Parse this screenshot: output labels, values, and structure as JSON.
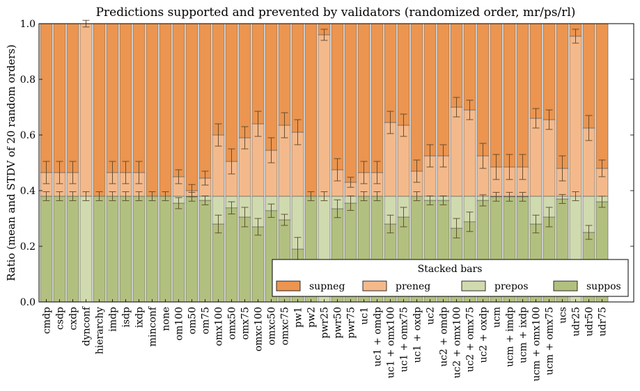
{
  "chart_data": {
    "type": "bar",
    "stacked": true,
    "title": "Predictions supported and prevented by validators (randomized order, mr/ps/rl)",
    "xlabel": "",
    "ylabel": "Ratio (mean and STDV of 20 random orders)",
    "ylim": [
      0,
      1.0
    ],
    "yticks": [
      "0.0",
      "0.2",
      "0.4",
      "0.6",
      "0.8",
      "1.0"
    ],
    "grid": false,
    "legend": {
      "title": "Stacked bars",
      "placement": "lower-right"
    },
    "categories": [
      "cmdp",
      "csdp",
      "cxdp",
      "dynconf",
      "hierarchy",
      "imdp",
      "isdp",
      "ixdp",
      "minconf",
      "none",
      "om100",
      "om50",
      "om75",
      "omx100",
      "omx50",
      "omx75",
      "omxc100",
      "omxc50",
      "omxc75",
      "pw1",
      "pw2",
      "pwr25",
      "pwr50",
      "pwr75",
      "uc1",
      "uc1 + omdp",
      "uc1 + omx100",
      "uc1 + omx75",
      "uc1 + oxdp",
      "uc2",
      "uc2 + omdp",
      "uc2 + omx100",
      "uc2 + omx75",
      "uc2 + oxdp",
      "ucm",
      "ucm + imdp",
      "ucm + ixdp",
      "ucm + omx100",
      "ucm + omx75",
      "ucs",
      "udr25",
      "udr50",
      "udr75"
    ],
    "series": [
      {
        "name": "suppos",
        "color": "#b2c07f",
        "values": [
          0.38,
          0.38,
          0.38,
          0,
          0.38,
          0.38,
          0.38,
          0.38,
          0.38,
          0.38,
          0.355,
          0.378,
          0.365,
          0.28,
          0.338,
          0.305,
          0.27,
          0.328,
          0.295,
          0.19,
          0.38,
          0,
          0.335,
          0.355,
          0.38,
          0.38,
          0.28,
          0.305,
          0.38,
          0.365,
          0.365,
          0.265,
          0.288,
          0.365,
          0.378,
          0.378,
          0.378,
          0.28,
          0.305,
          0.37,
          0,
          0.25,
          0.36
        ],
        "errors": [
          0.016,
          0.016,
          0.016,
          0,
          0.016,
          0.016,
          0.016,
          0.016,
          0.016,
          0.016,
          0.02,
          0.016,
          0.016,
          0.032,
          0.022,
          0.035,
          0.03,
          0.024,
          0.02,
          0.042,
          0.016,
          0,
          0.032,
          0.026,
          0.016,
          0.016,
          0.032,
          0.035,
          0.016,
          0.016,
          0.016,
          0.035,
          0.035,
          0.02,
          0.016,
          0.016,
          0.016,
          0.032,
          0.035,
          0.016,
          0,
          0.025,
          0.02
        ]
      },
      {
        "name": "prepos",
        "color": "#d0daaf",
        "values": [
          0,
          0,
          0,
          0.38,
          0,
          0,
          0,
          0,
          0,
          0,
          0.025,
          0.002,
          0.015,
          0.1,
          0.042,
          0.075,
          0.11,
          0.052,
          0.085,
          0.19,
          0,
          0.38,
          0.045,
          0.025,
          0,
          0,
          0.1,
          0.075,
          0,
          0.015,
          0.015,
          0.115,
          0.092,
          0.015,
          0.002,
          0.002,
          0.002,
          0.1,
          0.075,
          0.01,
          0.38,
          0.13,
          0.02
        ],
        "errors": [
          0,
          0,
          0,
          0.016,
          0,
          0,
          0,
          0,
          0,
          0,
          0,
          0,
          0,
          0,
          0,
          0,
          0,
          0,
          0,
          0,
          0,
          0.016,
          0,
          0,
          0,
          0,
          0,
          0,
          0,
          0,
          0,
          0,
          0,
          0,
          0,
          0,
          0,
          0,
          0,
          0,
          0.016,
          0,
          0
        ]
      },
      {
        "name": "preneg",
        "color": "#f4b98b",
        "values": [
          0.085,
          0.085,
          0.085,
          0.62,
          0,
          0.085,
          0.085,
          0.085,
          0,
          0,
          0.07,
          0.02,
          0.065,
          0.22,
          0.125,
          0.21,
          0.26,
          0.165,
          0.255,
          0.23,
          0,
          0.58,
          0.095,
          0.05,
          0.085,
          0.085,
          0.265,
          0.255,
          0.09,
          0.145,
          0.145,
          0.32,
          0.31,
          0.145,
          0.105,
          0.105,
          0.105,
          0.28,
          0.275,
          0.1,
          0.575,
          0.245,
          0.1
        ],
        "errors": [
          0.04,
          0.04,
          0.04,
          0.012,
          0,
          0.04,
          0.04,
          0.04,
          0,
          0,
          0.025,
          0.022,
          0.025,
          0.04,
          0.045,
          0.04,
          0.045,
          0.045,
          0.045,
          0.045,
          0,
          0.02,
          0.04,
          0.018,
          0.04,
          0.04,
          0.04,
          0.04,
          0.04,
          0.04,
          0.04,
          0.035,
          0.035,
          0.045,
          0.045,
          0.045,
          0.045,
          0.035,
          0.035,
          0.045,
          0.025,
          0.045,
          0.03
        ]
      },
      {
        "name": "supneg",
        "color": "#eb9550",
        "values": [
          0.535,
          0.535,
          0.535,
          0,
          0.62,
          0.535,
          0.535,
          0.535,
          0.62,
          0.62,
          0.55,
          0.6,
          0.555,
          0.4,
          0.495,
          0.41,
          0.36,
          0.455,
          0.365,
          0.39,
          0.62,
          0.04,
          0.525,
          0.57,
          0.535,
          0.535,
          0.355,
          0.365,
          0.53,
          0.475,
          0.475,
          0.3,
          0.31,
          0.475,
          0.515,
          0.515,
          0.515,
          0.34,
          0.345,
          0.52,
          0.045,
          0.375,
          0.52
        ]
      }
    ]
  }
}
